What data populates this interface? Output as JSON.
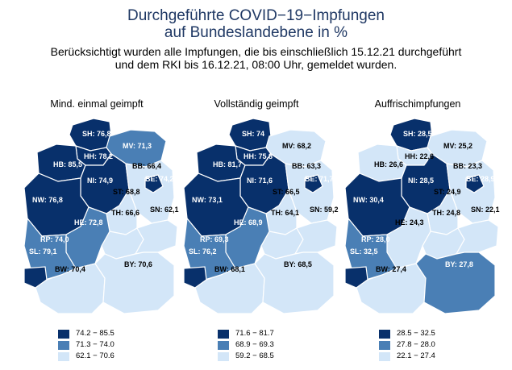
{
  "title_line1": "Durchgeführte COVID−19−Impfungen",
  "title_line2": "auf Bundeslandebene in %",
  "subtitle_line1": "Berücksichtigt wurden alle Impfungen, die bis einschließlich 15.12.21 durchgeführt",
  "subtitle_line2": "und dem RKI bis 16.12.21, 08:00 Uhr, gemeldet wurden.",
  "colors": {
    "dark": "#08306b",
    "mid": "#4a7fb5",
    "light": "#d3e6f8"
  },
  "maps": [
    {
      "title": "Mind. einmal geimpft",
      "legend": [
        "74.2 − 85.5",
        "71.3 − 74.0",
        "62.1 − 70.6"
      ],
      "states": {
        "SH": {
          "label": "SH: 76,8",
          "cls": "dark"
        },
        "HH": {
          "label": "HH: 78,2",
          "cls": "dark"
        },
        "MV": {
          "label": "MV: 71,3",
          "cls": "mid"
        },
        "HB": {
          "label": "HB: 85,5",
          "cls": "dark"
        },
        "NI": {
          "label": "NI: 74,9",
          "cls": "dark"
        },
        "BB": {
          "label": "BB: 66,4",
          "cls": "light"
        },
        "BE": {
          "label": "BE: 74,2",
          "cls": "dark"
        },
        "ST": {
          "label": "ST: 68,8",
          "cls": "light"
        },
        "NW": {
          "label": "NW: 76,8",
          "cls": "dark"
        },
        "TH": {
          "label": "TH: 66,6",
          "cls": "light"
        },
        "SN": {
          "label": "SN: 62,1",
          "cls": "light"
        },
        "HE": {
          "label": "HE: 72,8",
          "cls": "mid"
        },
        "RP": {
          "label": "RP: 74,0",
          "cls": "mid"
        },
        "SL": {
          "label": "SL: 79,1",
          "cls": "dark"
        },
        "BW": {
          "label": "BW: 70,4",
          "cls": "light"
        },
        "BY": {
          "label": "BY: 70,6",
          "cls": "light"
        }
      }
    },
    {
      "title": "Vollständig geimpft",
      "legend": [
        "71.6 − 81.7",
        "68.9 − 69.3",
        "59.2 − 68.5"
      ],
      "states": {
        "SH": {
          "label": "SH: 74",
          "cls": "dark"
        },
        "HH": {
          "label": "HH: 75,8",
          "cls": "dark"
        },
        "MV": {
          "label": "MV: 68,2",
          "cls": "light"
        },
        "HB": {
          "label": "HB: 81,7",
          "cls": "dark"
        },
        "NI": {
          "label": "NI: 71,6",
          "cls": "dark"
        },
        "BB": {
          "label": "BB: 63,3",
          "cls": "light"
        },
        "BE": {
          "label": "BE: 71,7",
          "cls": "dark"
        },
        "ST": {
          "label": "ST: 66,5",
          "cls": "light"
        },
        "NW": {
          "label": "NW: 73,1",
          "cls": "dark"
        },
        "TH": {
          "label": "TH: 64,1",
          "cls": "light"
        },
        "SN": {
          "label": "SN: 59,2",
          "cls": "light"
        },
        "HE": {
          "label": "HE: 68,9",
          "cls": "mid"
        },
        "RP": {
          "label": "RP: 69,3",
          "cls": "mid"
        },
        "SL": {
          "label": "SL: 76,2",
          "cls": "dark"
        },
        "BW": {
          "label": "BW: 68,1",
          "cls": "light"
        },
        "BY": {
          "label": "BY: 68,5",
          "cls": "light"
        }
      }
    },
    {
      "title": "Auffrischimpfungen",
      "legend": [
        "28.5 − 32.5",
        "27.8 − 28.0",
        "22.1 − 27.4"
      ],
      "states": {
        "SH": {
          "label": "SH: 28,5",
          "cls": "dark"
        },
        "HH": {
          "label": "HH: 22,6",
          "cls": "light"
        },
        "MV": {
          "label": "MV: 25,2",
          "cls": "light"
        },
        "HB": {
          "label": "HB: 26,6",
          "cls": "light"
        },
        "NI": {
          "label": "NI: 28,5",
          "cls": "dark"
        },
        "BB": {
          "label": "BB: 23,3",
          "cls": "light"
        },
        "BE": {
          "label": "BE: 28,9",
          "cls": "dark"
        },
        "ST": {
          "label": "ST: 24,9",
          "cls": "light"
        },
        "NW": {
          "label": "NW: 30,4",
          "cls": "dark"
        },
        "TH": {
          "label": "TH: 24,8",
          "cls": "light"
        },
        "SN": {
          "label": "SN: 22,1",
          "cls": "light"
        },
        "HE": {
          "label": "HE: 24,3",
          "cls": "light"
        },
        "RP": {
          "label": "RP: 28,0",
          "cls": "mid"
        },
        "SL": {
          "label": "SL: 32,5",
          "cls": "dark"
        },
        "BW": {
          "label": "BW: 27,4",
          "cls": "light"
        },
        "BY": {
          "label": "BY: 27,8",
          "cls": "mid"
        }
      }
    }
  ]
}
